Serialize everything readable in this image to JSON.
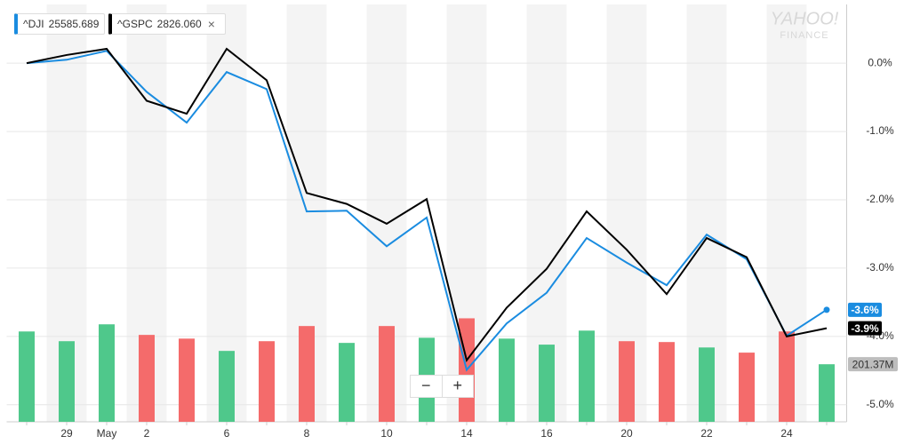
{
  "chart_data": {
    "type": "line",
    "categories": [
      null,
      "29",
      "May",
      "2",
      null,
      "6",
      null,
      "8",
      null,
      "10",
      null,
      "14",
      null,
      "16",
      null,
      "20",
      null,
      "22",
      null,
      "24",
      null
    ],
    "series": [
      {
        "name": "^DJI",
        "price": "25585.689",
        "color": "#1a8ce0",
        "last_label": "-3.6%",
        "values": [
          0.0,
          0.05,
          0.18,
          -0.42,
          -0.87,
          -0.13,
          -0.38,
          -2.17,
          -2.16,
          -2.68,
          -2.26,
          -4.49,
          -3.81,
          -3.36,
          -2.56,
          -2.92,
          -3.25,
          -2.51,
          -2.87,
          -3.99,
          -3.61
        ]
      },
      {
        "name": "^GSPC",
        "price": "2826.060",
        "color": "#000000",
        "last_label": "-3.9%",
        "values": [
          0.0,
          0.12,
          0.21,
          -0.55,
          -0.74,
          0.21,
          -0.25,
          -1.9,
          -2.06,
          -2.35,
          -1.99,
          -4.35,
          -3.58,
          -3.01,
          -2.17,
          -2.73,
          -3.38,
          -2.56,
          -2.84,
          -4.0,
          -3.88
        ]
      }
    ],
    "volume": {
      "axis": "y2",
      "values": [
        316,
        282,
        341,
        304,
        291,
        248,
        282,
        335,
        276,
        335,
        294,
        362,
        291,
        270,
        319,
        282,
        279,
        260,
        242,
        316,
        201.37
      ],
      "colors": [
        "#4fc88b",
        "#4fc88b",
        "#4fc88b",
        "#f46b6b",
        "#f46b6b",
        "#4fc88b",
        "#f46b6b",
        "#f46b6b",
        "#4fc88b",
        "#f46b6b",
        "#4fc88b",
        "#f46b6b",
        "#4fc88b",
        "#4fc88b",
        "#4fc88b",
        "#f46b6b",
        "#f46b6b",
        "#4fc88b",
        "#f46b6b",
        "#f46b6b",
        "#4fc88b"
      ],
      "last_label": "201.37M"
    },
    "ylim": [
      -5.25,
      0.86
    ],
    "yticks": [
      {
        "value": 0,
        "label": "0.0%"
      },
      {
        "value": -1,
        "label": "-1.0%"
      },
      {
        "value": -2,
        "label": "-2.0%"
      },
      {
        "value": -3,
        "label": "-3.0%"
      },
      {
        "value": -4,
        "label": "-4.0%"
      },
      {
        "value": -5,
        "label": "-5.0%"
      }
    ],
    "y2lim": [
      0,
      1460
    ],
    "grid": true,
    "watermark": [
      "YAHOO!",
      "FINANCE"
    ]
  }
}
